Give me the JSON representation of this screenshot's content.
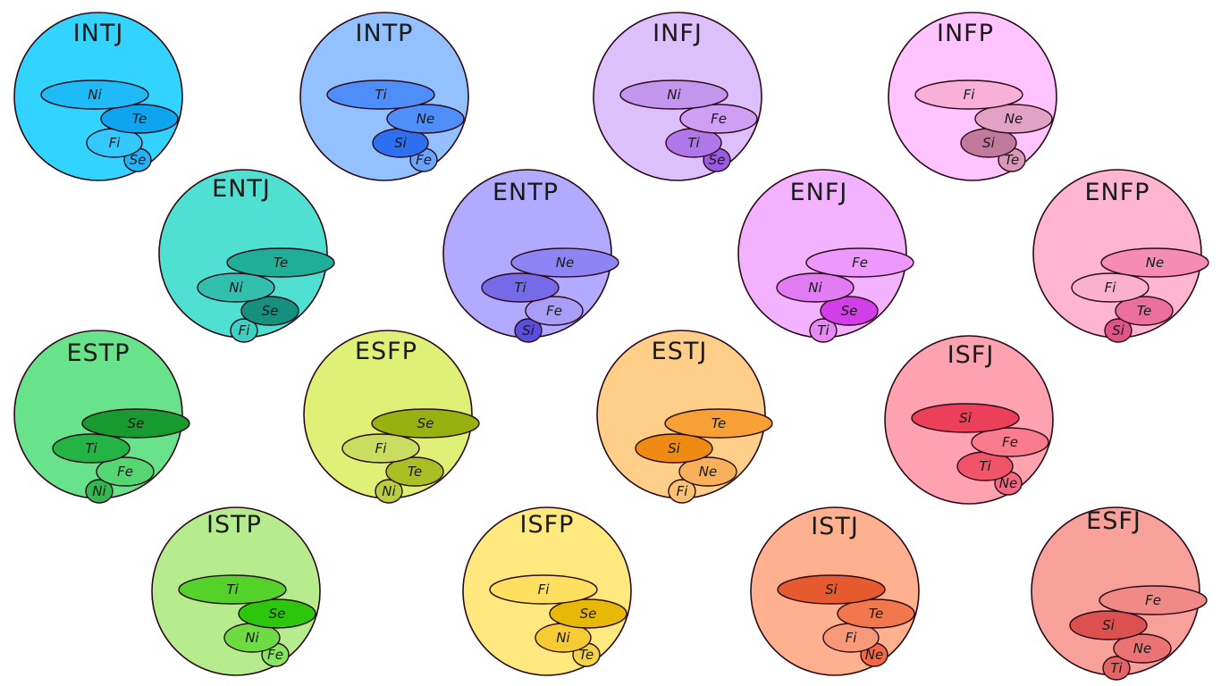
{
  "types": [
    {
      "name": "INTJ",
      "functions": [
        "Ni",
        "Te",
        "Fi",
        "Se"
      ],
      "colors": {
        "circle": "#33d3ff",
        "f1": "#1fbaf8",
        "f2": "#0ea5ee",
        "f3": "#33c8ff",
        "f4": "#22b4f4"
      }
    },
    {
      "name": "INTP",
      "functions": [
        "Ti",
        "Ne",
        "Si",
        "Fe"
      ],
      "colors": {
        "circle": "#93c0ff",
        "f1": "#4f8ef8",
        "f2": "#4f8ef8",
        "f3": "#2e6fef",
        "f4": "#6ba4fb"
      }
    },
    {
      "name": "INFJ",
      "functions": [
        "Ni",
        "Fe",
        "Ti",
        "Se"
      ],
      "colors": {
        "circle": "#ddc0fb",
        "f1": "#c396ee",
        "f2": "#ce9ff5",
        "f3": "#ae78e8",
        "f4": "#9a5bde"
      }
    },
    {
      "name": "INFP",
      "functions": [
        "Fi",
        "Ne",
        "Si",
        "Te"
      ],
      "colors": {
        "circle": "#ffc4ff",
        "f1": "#f8b0d8",
        "f2": "#e2a2c4",
        "f3": "#c17a9c",
        "f4": "#d898b8"
      }
    },
    {
      "name": "ENTJ",
      "functions": [
        "Te",
        "Ni",
        "Se",
        "Fi"
      ],
      "colors": {
        "circle": "#4fe0d2",
        "f1": "#1fae98",
        "f2": "#32bfad",
        "f3": "#16917f",
        "f4": "#3ed0c2"
      }
    },
    {
      "name": "ENTP",
      "functions": [
        "Ne",
        "Ti",
        "Fe",
        "Si"
      ],
      "colors": {
        "circle": "#b2aaff",
        "f1": "#8f84f4",
        "f2": "#766ae8",
        "f3": "#a89ef8",
        "f4": "#5a4ede"
      }
    },
    {
      "name": "ENFJ",
      "functions": [
        "Fe",
        "Ni",
        "Se",
        "Ti"
      ],
      "colors": {
        "circle": "#f3b2ff",
        "f1": "#ec98fc",
        "f2": "#e27cf2",
        "f3": "#d23ee8",
        "f4": "#e48af2"
      }
    },
    {
      "name": "ENFP",
      "functions": [
        "Ne",
        "Fi",
        "Te",
        "Si"
      ],
      "colors": {
        "circle": "#ffb4d0",
        "f1": "#f48cb4",
        "f2": "#fbb0cc",
        "f3": "#ec709c",
        "f4": "#e05588"
      }
    },
    {
      "name": "ESTP",
      "functions": [
        "Se",
        "Ti",
        "Fe",
        "Ni"
      ],
      "colors": {
        "circle": "#68e38c",
        "f1": "#179a30",
        "f2": "#24b445",
        "f3": "#55d672",
        "f4": "#31b84e"
      }
    },
    {
      "name": "ESFP",
      "functions": [
        "Se",
        "Fi",
        "Te",
        "Ni"
      ],
      "colors": {
        "circle": "#def076",
        "f1": "#97b210",
        "f2": "#c9de60",
        "f3": "#a8c024",
        "f4": "#b8cf40"
      }
    },
    {
      "name": "ESTJ",
      "functions": [
        "Te",
        "Si",
        "Ne",
        "Fi"
      ],
      "colors": {
        "circle": "#ffcf8a",
        "f1": "#f6a035",
        "f2": "#ef8a12",
        "f3": "#f8b15a",
        "f4": "#fbc274"
      }
    },
    {
      "name": "ISFJ",
      "functions": [
        "Si",
        "Fe",
        "Ti",
        "Ne"
      ],
      "colors": {
        "circle": "#ffa2b0",
        "f1": "#ec3f5a",
        "f2": "#f87c8e",
        "f3": "#ef5468",
        "f4": "#f26a80"
      }
    },
    {
      "name": "ISTP",
      "functions": [
        "Ti",
        "Se",
        "Ni",
        "Fe"
      ],
      "colors": {
        "circle": "#b6ec8e",
        "f1": "#54d22a",
        "f2": "#2cc70c",
        "f3": "#6cdc42",
        "f4": "#8ae464"
      }
    },
    {
      "name": "ISFP",
      "functions": [
        "Fi",
        "Se",
        "Ni",
        "Te"
      ],
      "colors": {
        "circle": "#ffe87e",
        "f1": "#ffdf60",
        "f2": "#e8b808",
        "f3": "#f6cb36",
        "f4": "#f4d24c"
      }
    },
    {
      "name": "ISTJ",
      "functions": [
        "Si",
        "Te",
        "Fi",
        "Ne"
      ],
      "colors": {
        "circle": "#ffb08e",
        "f1": "#e65a30",
        "f2": "#f0784c",
        "f3": "#f79878",
        "f4": "#f06a48"
      }
    },
    {
      "name": "ESFJ",
      "functions": [
        "Fe",
        "Si",
        "Ne",
        "Ti"
      ],
      "colors": {
        "circle": "#f8a09a",
        "f1": "#f08a86",
        "f2": "#dc5050",
        "f3": "#ea7474",
        "f4": "#e46464"
      }
    }
  ]
}
